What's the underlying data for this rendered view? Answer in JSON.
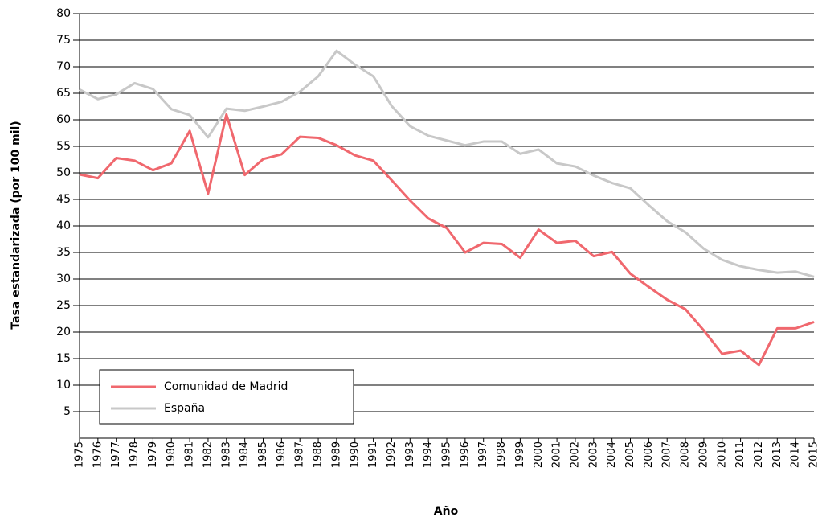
{
  "chart_data": {
    "type": "line",
    "y_label": "Tasa estandarizada (por 100 mil)",
    "x_label": "Año",
    "x": [
      1975,
      1976,
      1977,
      1978,
      1979,
      1980,
      1981,
      1982,
      1983,
      1984,
      1985,
      1986,
      1987,
      1988,
      1989,
      1990,
      1991,
      1992,
      1993,
      1994,
      1995,
      1996,
      1997,
      1998,
      1999,
      2000,
      2001,
      2002,
      2003,
      2004,
      2005,
      2006,
      2007,
      2008,
      2009,
      2010,
      2011,
      2012,
      2013,
      2014,
      2015
    ],
    "series": [
      {
        "name": "Comunidad de Madrid",
        "color": "#f0686e",
        "values": [
          49.7,
          49.0,
          52.8,
          52.3,
          50.5,
          51.8,
          57.9,
          46.1,
          61.0,
          49.6,
          52.6,
          53.5,
          56.8,
          56.6,
          55.2,
          53.3,
          52.3,
          48.6,
          44.8,
          41.4,
          39.6,
          35.0,
          36.8,
          36.6,
          34.0,
          39.3,
          36.8,
          37.2,
          34.3,
          35.1,
          31.0,
          28.5,
          26.1,
          24.3,
          20.3,
          15.9,
          16.5,
          13.8,
          20.7,
          20.7,
          21.9
        ]
      },
      {
        "name": "España",
        "color": "#c8c8c8",
        "values": [
          65.7,
          63.9,
          64.8,
          66.9,
          65.8,
          62.0,
          60.9,
          56.7,
          62.1,
          61.7,
          62.5,
          63.4,
          65.3,
          68.2,
          73.0,
          70.4,
          68.2,
          62.6,
          58.8,
          57.0,
          56.1,
          55.2,
          55.9,
          55.9,
          53.6,
          54.4,
          51.8,
          51.2,
          49.5,
          48.1,
          47.1,
          43.9,
          40.9,
          38.8,
          35.7,
          33.6,
          32.4,
          31.7,
          31.2,
          31.4,
          30.4
        ]
      }
    ],
    "xlim": [
      1975,
      2015
    ],
    "xticks": [
      1975,
      1976,
      1977,
      1978,
      1979,
      1980,
      1981,
      1982,
      1983,
      1984,
      1985,
      1986,
      1987,
      1988,
      1989,
      1990,
      1991,
      1992,
      1993,
      1994,
      1995,
      1996,
      1997,
      1998,
      1999,
      2000,
      2001,
      2002,
      2003,
      2004,
      2005,
      2006,
      2007,
      2008,
      2009,
      2010,
      2011,
      2012,
      2013,
      2014,
      2015
    ],
    "ylim": [
      0,
      80
    ],
    "yticks": [
      5,
      10,
      15,
      20,
      25,
      30,
      35,
      40,
      45,
      50,
      55,
      60,
      65,
      70,
      75,
      80
    ],
    "grid": true,
    "legend": "lower-left"
  }
}
